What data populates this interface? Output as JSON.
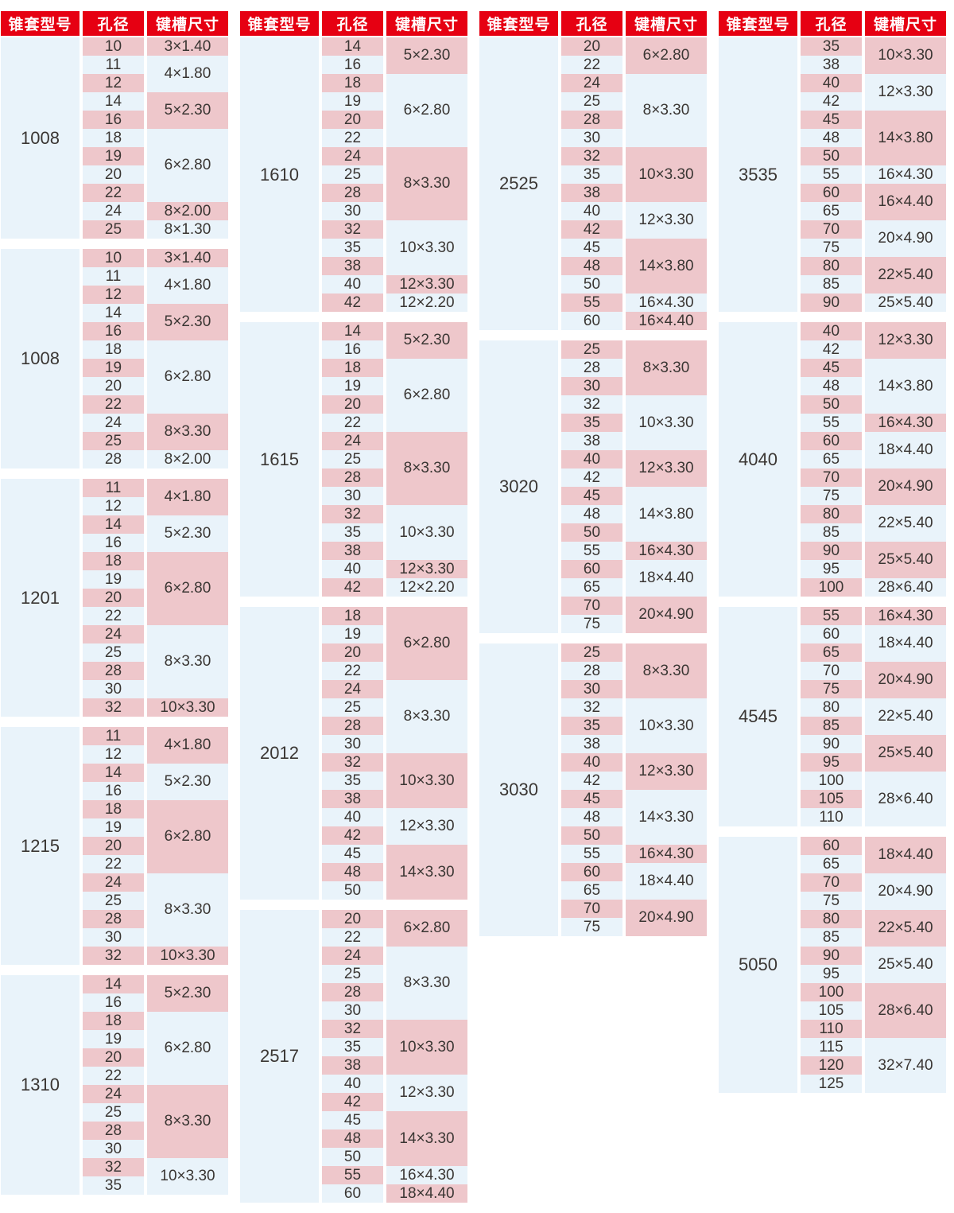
{
  "colors": {
    "header_bg": "#e60012",
    "header_text": "#ffffff",
    "row_pink": "#eec7cb",
    "row_blue": "#e9f3fa",
    "text": "#3a3633",
    "page_bg": "#ffffff"
  },
  "header": {
    "model": "锥套型号",
    "bore": "孔径",
    "keyway": "键槽尺寸"
  },
  "columns": [
    {
      "tables": [
        {
          "model": "1008",
          "groups": [
            {
              "keyway": "3×1.40",
              "bores": [
                "10"
              ]
            },
            {
              "keyway": "4×1.80",
              "bores": [
                "11",
                "12"
              ]
            },
            {
              "keyway": "5×2.30",
              "bores": [
                "14",
                "16"
              ]
            },
            {
              "keyway": "6×2.80",
              "bores": [
                "18",
                "19",
                "20",
                "22"
              ]
            },
            {
              "keyway": "8×2.00",
              "bores": [
                "24"
              ]
            },
            {
              "keyway": "8×1.30",
              "bores": [
                "25"
              ]
            }
          ]
        },
        {
          "model": "1008",
          "groups": [
            {
              "keyway": "3×1.40",
              "bores": [
                "10"
              ]
            },
            {
              "keyway": "4×1.80",
              "bores": [
                "11",
                "12"
              ]
            },
            {
              "keyway": "5×2.30",
              "bores": [
                "14",
                "16"
              ]
            },
            {
              "keyway": "6×2.80",
              "bores": [
                "18",
                "19",
                "20",
                "22"
              ]
            },
            {
              "keyway": "8×3.30",
              "bores": [
                "24",
                "25"
              ]
            },
            {
              "keyway": "8×2.00",
              "bores": [
                "28"
              ]
            }
          ]
        },
        {
          "model": "1201",
          "groups": [
            {
              "keyway": "4×1.80",
              "bores": [
                "11",
                "12"
              ]
            },
            {
              "keyway": "5×2.30",
              "bores": [
                "14",
                "16"
              ]
            },
            {
              "keyway": "6×2.80",
              "bores": [
                "18",
                "19",
                "20",
                "22"
              ]
            },
            {
              "keyway": "8×3.30",
              "bores": [
                "24",
                "25",
                "28",
                "30"
              ]
            },
            {
              "keyway": "10×3.30",
              "bores": [
                "32"
              ]
            }
          ]
        },
        {
          "model": "1215",
          "groups": [
            {
              "keyway": "4×1.80",
              "bores": [
                "11",
                "12"
              ]
            },
            {
              "keyway": "5×2.30",
              "bores": [
                "14",
                "16"
              ]
            },
            {
              "keyway": "6×2.80",
              "bores": [
                "18",
                "19",
                "20",
                "22"
              ]
            },
            {
              "keyway": "8×3.30",
              "bores": [
                "24",
                "25",
                "28",
                "30"
              ]
            },
            {
              "keyway": "10×3.30",
              "bores": [
                "32"
              ]
            }
          ]
        },
        {
          "model": "1310",
          "groups": [
            {
              "keyway": "5×2.30",
              "bores": [
                "14",
                "16"
              ]
            },
            {
              "keyway": "6×2.80",
              "bores": [
                "18",
                "19",
                "20",
                "22"
              ]
            },
            {
              "keyway": "8×3.30",
              "bores": [
                "24",
                "25",
                "28",
                "30"
              ]
            },
            {
              "keyway": "10×3.30",
              "bores": [
                "32",
                "35"
              ]
            }
          ]
        }
      ]
    },
    {
      "tables": [
        {
          "model": "1610",
          "groups": [
            {
              "keyway": "5×2.30",
              "bores": [
                "14",
                "16"
              ]
            },
            {
              "keyway": "6×2.80",
              "bores": [
                "18",
                "19",
                "20",
                "22"
              ]
            },
            {
              "keyway": "8×3.30",
              "bores": [
                "24",
                "25",
                "28",
                "30"
              ]
            },
            {
              "keyway": "10×3.30",
              "bores": [
                "32",
                "35",
                "38"
              ]
            },
            {
              "keyway": "12×3.30",
              "bores": [
                "40"
              ]
            },
            {
              "keyway": "12×2.20",
              "bores": [
                "42"
              ]
            }
          ]
        },
        {
          "model": "1615",
          "groups": [
            {
              "keyway": "5×2.30",
              "bores": [
                "14",
                "16"
              ]
            },
            {
              "keyway": "6×2.80",
              "bores": [
                "18",
                "19",
                "20",
                "22"
              ]
            },
            {
              "keyway": "8×3.30",
              "bores": [
                "24",
                "25",
                "28",
                "30"
              ]
            },
            {
              "keyway": "10×3.30",
              "bores": [
                "32",
                "35",
                "38"
              ]
            },
            {
              "keyway": "12×3.30",
              "bores": [
                "40"
              ]
            },
            {
              "keyway": "12×2.20",
              "bores": [
                "42"
              ]
            }
          ]
        },
        {
          "model": "2012",
          "groups": [
            {
              "keyway": "6×2.80",
              "bores": [
                "18",
                "19",
                "20",
                "22"
              ]
            },
            {
              "keyway": "8×3.30",
              "bores": [
                "24",
                "25",
                "28",
                "30"
              ]
            },
            {
              "keyway": "10×3.30",
              "bores": [
                "32",
                "35",
                "38"
              ]
            },
            {
              "keyway": "12×3.30",
              "bores": [
                "40",
                "42"
              ]
            },
            {
              "keyway": "14×3.30",
              "bores": [
                "45",
                "48",
                "50"
              ]
            }
          ]
        },
        {
          "model": "2517",
          "groups": [
            {
              "keyway": "6×2.80",
              "bores": [
                "20",
                "22"
              ]
            },
            {
              "keyway": "8×3.30",
              "bores": [
                "24",
                "25",
                "28",
                "30"
              ]
            },
            {
              "keyway": "10×3.30",
              "bores": [
                "32",
                "35",
                "38"
              ]
            },
            {
              "keyway": "12×3.30",
              "bores": [
                "40",
                "42"
              ]
            },
            {
              "keyway": "14×3.30",
              "bores": [
                "45",
                "48",
                "50"
              ]
            },
            {
              "keyway": "16×4.30",
              "bores": [
                "55"
              ]
            },
            {
              "keyway": "18×4.40",
              "bores": [
                "60"
              ]
            }
          ]
        }
      ]
    },
    {
      "tables": [
        {
          "model": "2525",
          "groups": [
            {
              "keyway": "6×2.80",
              "bores": [
                "20",
                "22"
              ]
            },
            {
              "keyway": "8×3.30",
              "bores": [
                "24",
                "25",
                "28",
                "30"
              ]
            },
            {
              "keyway": "10×3.30",
              "bores": [
                "32",
                "35",
                "38"
              ]
            },
            {
              "keyway": "12×3.30",
              "bores": [
                "40",
                "42"
              ]
            },
            {
              "keyway": "14×3.80",
              "bores": [
                "45",
                "48",
                "50"
              ]
            },
            {
              "keyway": "16×4.30",
              "bores": [
                "55"
              ]
            },
            {
              "keyway": "16×4.40",
              "bores": [
                "60"
              ]
            }
          ]
        },
        {
          "model": "3020",
          "groups": [
            {
              "keyway": "8×3.30",
              "bores": [
                "25",
                "28",
                "30"
              ]
            },
            {
              "keyway": "10×3.30",
              "bores": [
                "32",
                "35",
                "38"
              ]
            },
            {
              "keyway": "12×3.30",
              "bores": [
                "40",
                "42"
              ]
            },
            {
              "keyway": "14×3.80",
              "bores": [
                "45",
                "48",
                "50"
              ]
            },
            {
              "keyway": "16×4.30",
              "bores": [
                "55"
              ]
            },
            {
              "keyway": "18×4.40",
              "bores": [
                "60",
                "65"
              ]
            },
            {
              "keyway": "20×4.90",
              "bores": [
                "70",
                "75"
              ]
            }
          ]
        },
        {
          "model": "3030",
          "groups": [
            {
              "keyway": "8×3.30",
              "bores": [
                "25",
                "28",
                "30"
              ]
            },
            {
              "keyway": "10×3.30",
              "bores": [
                "32",
                "35",
                "38"
              ]
            },
            {
              "keyway": "12×3.30",
              "bores": [
                "40",
                "42"
              ]
            },
            {
              "keyway": "14×3.30",
              "bores": [
                "45",
                "48",
                "50"
              ]
            },
            {
              "keyway": "16×4.30",
              "bores": [
                "55"
              ]
            },
            {
              "keyway": "18×4.40",
              "bores": [
                "60",
                "65"
              ]
            },
            {
              "keyway": "20×4.90",
              "bores": [
                "70",
                "75"
              ]
            }
          ]
        }
      ]
    },
    {
      "tables": [
        {
          "model": "3535",
          "groups": [
            {
              "keyway": "10×3.30",
              "bores": [
                "35",
                "38"
              ]
            },
            {
              "keyway": "12×3.30",
              "bores": [
                "40",
                "42"
              ]
            },
            {
              "keyway": "14×3.80",
              "bores": [
                "45",
                "48",
                "50"
              ]
            },
            {
              "keyway": "16×4.30",
              "bores": [
                "55"
              ]
            },
            {
              "keyway": "16×4.40",
              "bores": [
                "60",
                "65"
              ]
            },
            {
              "keyway": "20×4.90",
              "bores": [
                "70",
                "75"
              ]
            },
            {
              "keyway": "22×5.40",
              "bores": [
                "80",
                "85"
              ]
            },
            {
              "keyway": "25×5.40",
              "bores": [
                "90"
              ]
            }
          ]
        },
        {
          "model": "4040",
          "groups": [
            {
              "keyway": "12×3.30",
              "bores": [
                "40",
                "42"
              ]
            },
            {
              "keyway": "14×3.80",
              "bores": [
                "45",
                "48",
                "50"
              ]
            },
            {
              "keyway": "16×4.30",
              "bores": [
                "55"
              ]
            },
            {
              "keyway": "18×4.40",
              "bores": [
                "60",
                "65"
              ]
            },
            {
              "keyway": "20×4.90",
              "bores": [
                "70",
                "75"
              ]
            },
            {
              "keyway": "22×5.40",
              "bores": [
                "80",
                "85"
              ]
            },
            {
              "keyway": "25×5.40",
              "bores": [
                "90",
                "95"
              ]
            },
            {
              "keyway": "28×6.40",
              "bores": [
                "100"
              ]
            }
          ]
        },
        {
          "model": "4545",
          "groups": [
            {
              "keyway": "16×4.30",
              "bores": [
                "55"
              ]
            },
            {
              "keyway": "18×4.40",
              "bores": [
                "60",
                "65"
              ]
            },
            {
              "keyway": "20×4.90",
              "bores": [
                "70",
                "75"
              ]
            },
            {
              "keyway": "22×5.40",
              "bores": [
                "80",
                "85"
              ]
            },
            {
              "keyway": "25×5.40",
              "bores": [
                "90",
                "95"
              ]
            },
            {
              "keyway": "28×6.40",
              "bores": [
                "100",
                "105",
                "110"
              ]
            }
          ]
        },
        {
          "model": "5050",
          "groups": [
            {
              "keyway": "18×4.40",
              "bores": [
                "60",
                "65"
              ]
            },
            {
              "keyway": "20×4.90",
              "bores": [
                "70",
                "75"
              ]
            },
            {
              "keyway": "22×5.40",
              "bores": [
                "80",
                "85"
              ]
            },
            {
              "keyway": "25×5.40",
              "bores": [
                "90",
                "95"
              ]
            },
            {
              "keyway": "28×6.40",
              "bores": [
                "100",
                "105",
                "110"
              ]
            },
            {
              "keyway": "32×7.40",
              "bores": [
                "115",
                "120",
                "125"
              ]
            }
          ]
        }
      ]
    }
  ]
}
